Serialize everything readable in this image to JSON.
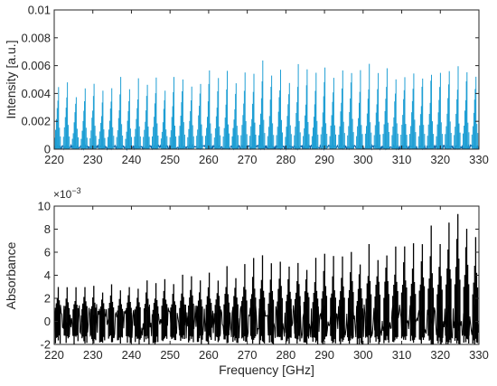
{
  "chart_data": [
    {
      "type": "line",
      "title": "",
      "xlabel": "",
      "ylabel": "Intensity [a.u.]",
      "xlim": [
        220,
        330
      ],
      "ylim": [
        0,
        0.01
      ],
      "xticks": [
        220,
        230,
        240,
        250,
        260,
        270,
        280,
        290,
        300,
        310,
        320,
        330
      ],
      "yticks": [
        0,
        0.002,
        0.004,
        0.006,
        0.008,
        0.01
      ],
      "ytick_labels": [
        "0",
        "0.002",
        "0.004",
        "0.006",
        "0.008",
        "0.01"
      ],
      "grid": false,
      "color": "#1f9fd4",
      "baseline_color": "#0b5fa5",
      "description": "Dense rotational line spectrum: groups of lines spaced by about 2.3 GHz, each group peaking near 0.0045-0.006.",
      "series": [
        {
          "x": [
            221.0,
            223.3,
            225.6,
            227.9,
            230.2,
            232.5,
            234.8,
            237.1,
            239.4,
            241.7,
            244.0,
            246.3,
            248.6,
            250.9,
            253.2,
            255.5,
            257.8,
            260.1,
            262.4,
            264.7,
            267.0,
            269.3,
            271.6,
            273.9,
            276.2,
            278.5,
            280.8,
            283.1,
            285.4,
            287.7,
            290.0,
            292.3,
            294.6,
            296.9,
            299.2,
            301.5,
            303.8,
            306.1,
            308.4,
            310.7,
            313.0,
            315.3,
            317.6,
            319.9,
            322.2,
            324.5,
            326.8,
            329.1
          ],
          "values": [
            0.0046,
            0.005,
            0.0041,
            0.0045,
            0.0048,
            0.0042,
            0.0047,
            0.005,
            0.0044,
            0.0049,
            0.0047,
            0.0052,
            0.0045,
            0.005,
            0.0054,
            0.0048,
            0.0052,
            0.0056,
            0.0051,
            0.0054,
            0.0049,
            0.0057,
            0.0053,
            0.0061,
            0.0055,
            0.0058,
            0.0052,
            0.0059,
            0.0055,
            0.0057,
            0.0059,
            0.0054,
            0.0058,
            0.006,
            0.0055,
            0.0059,
            0.0056,
            0.006,
            0.0054,
            0.0057,
            0.006,
            0.0055,
            0.0059,
            0.0057,
            0.0061,
            0.0058,
            0.006,
            0.0056
          ]
        }
      ]
    },
    {
      "type": "line",
      "title": "",
      "xlabel": "Frequency [GHz]",
      "ylabel": "Absorbance",
      "exponent_label": "×10",
      "exponent_power": "−3",
      "xlim": [
        220,
        330
      ],
      "ylim": [
        -2,
        10
      ],
      "xticks": [
        220,
        230,
        240,
        250,
        260,
        270,
        280,
        290,
        300,
        310,
        320,
        330
      ],
      "yticks": [
        -2,
        0,
        2,
        4,
        6,
        8,
        10
      ],
      "grid": false,
      "color": "#000000",
      "description": "Noisy absorbance trace (scaled by 1e-3), noise band about -1.5 to 1.5, peaks rising from about 3 at 220 GHz to about 7-10 near 325 GHz.",
      "series": [
        {
          "x": [
            221.0,
            223.3,
            225.6,
            227.9,
            230.2,
            232.5,
            234.8,
            237.1,
            239.4,
            241.7,
            244.0,
            246.3,
            248.6,
            250.9,
            253.2,
            255.5,
            257.8,
            260.1,
            262.4,
            264.7,
            267.0,
            269.3,
            271.6,
            273.9,
            276.2,
            278.5,
            280.8,
            283.1,
            285.4,
            287.7,
            290.0,
            292.3,
            294.6,
            296.9,
            299.2,
            301.5,
            303.8,
            306.1,
            308.4,
            310.7,
            313.0,
            315.3,
            317.6,
            319.9,
            322.2,
            324.5,
            326.8,
            329.1
          ],
          "values": [
            3.2,
            3.0,
            2.9,
            3.2,
            3.0,
            2.8,
            3.3,
            3.1,
            3.4,
            3.0,
            3.5,
            3.3,
            3.8,
            3.4,
            3.9,
            4.0,
            3.6,
            4.2,
            3.9,
            4.6,
            4.2,
            4.9,
            5.3,
            5.6,
            5.0,
            5.4,
            5.1,
            5.8,
            5.2,
            5.6,
            6.0,
            5.6,
            5.4,
            6.3,
            5.8,
            6.4,
            6.1,
            6.6,
            6.3,
            7.0,
            6.6,
            7.3,
            8.0,
            7.5,
            9.0,
            10.0,
            9.2,
            7.6
          ]
        }
      ]
    }
  ]
}
